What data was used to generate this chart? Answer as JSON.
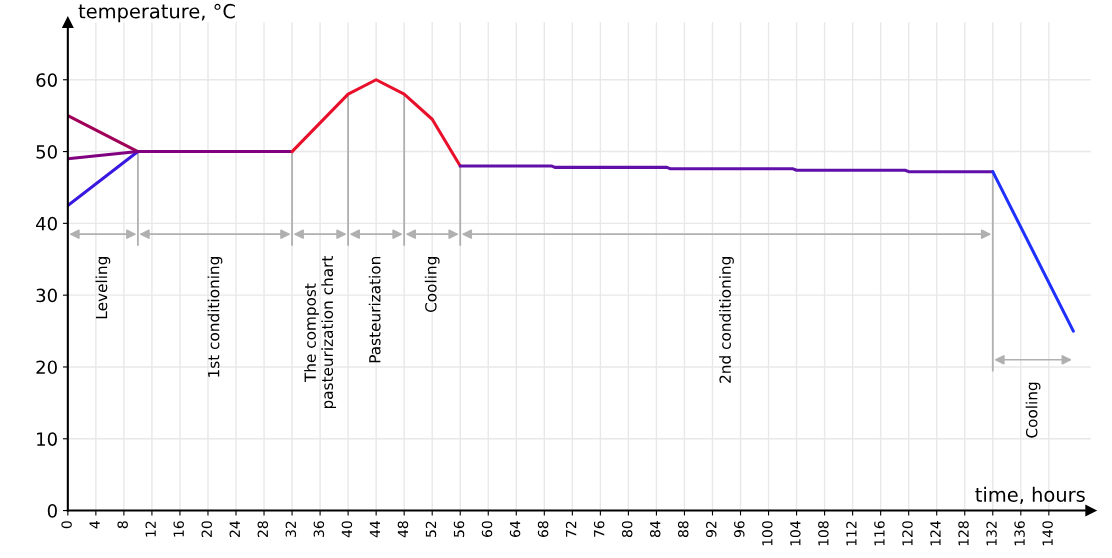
{
  "chart_data": {
    "type": "line",
    "xlabel": "time, hours",
    "ylabel": "temperature, °C",
    "xlim": [
      0,
      146
    ],
    "ylim": [
      0,
      68
    ],
    "xticks": [
      0,
      4,
      8,
      12,
      16,
      20,
      24,
      28,
      32,
      36,
      40,
      44,
      48,
      52,
      56,
      60,
      64,
      68,
      72,
      76,
      80,
      84,
      88,
      92,
      96,
      100,
      104,
      108,
      112,
      116,
      120,
      124,
      128,
      132,
      136,
      140
    ],
    "yticks": [
      0,
      10,
      20,
      30,
      40,
      50,
      60
    ],
    "grid": true,
    "legend": false,
    "marker": "none",
    "line_style": "solid",
    "series": [
      {
        "color": "#a0005a",
        "x": [
          0,
          10
        ],
        "values": [
          55,
          50
        ]
      },
      {
        "color": "#3a18e0",
        "x": [
          0,
          10
        ],
        "values": [
          42.5,
          50
        ]
      },
      {
        "color": "#800080",
        "x": [
          0,
          10,
          32
        ],
        "values": [
          49,
          50,
          50
        ]
      },
      {
        "color": "#e8102a",
        "x": [
          32,
          36,
          40,
          44,
          48,
          52,
          56
        ],
        "values": [
          50,
          54,
          58,
          60,
          58,
          54.5,
          48
        ]
      },
      {
        "color": "#6010a8",
        "x": [
          56,
          69,
          69.5,
          85.5,
          86,
          103.5,
          104,
          119.5,
          120,
          132
        ],
        "values": [
          48,
          48,
          47.8,
          47.8,
          47.6,
          47.6,
          47.4,
          47.4,
          47.2,
          47.2
        ]
      },
      {
        "color": "#2030ff",
        "x": [
          132,
          143.5
        ],
        "values": [
          47.2,
          25
        ]
      }
    ],
    "ref_lines": [
      {
        "axis": "x",
        "value": 10,
        "color": "#b0b0b0",
        "line_style": "solid"
      },
      {
        "axis": "x",
        "value": 32,
        "color": "#b0b0b0",
        "line_style": "solid"
      },
      {
        "axis": "x",
        "value": 40,
        "color": "#b0b0b0",
        "line_style": "solid"
      },
      {
        "axis": "x",
        "value": 48,
        "color": "#b0b0b0",
        "line_style": "solid"
      },
      {
        "axis": "x",
        "value": 56,
        "color": "#b0b0b0",
        "line_style": "solid"
      },
      {
        "axis": "x",
        "value": 132,
        "color": "#b0b0b0",
        "line_style": "solid"
      }
    ],
    "annotations": [
      "Leveling",
      "1st conditioning",
      "The compost\npasteurization chart",
      "Pasteurization",
      "Cooling",
      "2nd conditioning",
      "Cooling"
    ]
  }
}
